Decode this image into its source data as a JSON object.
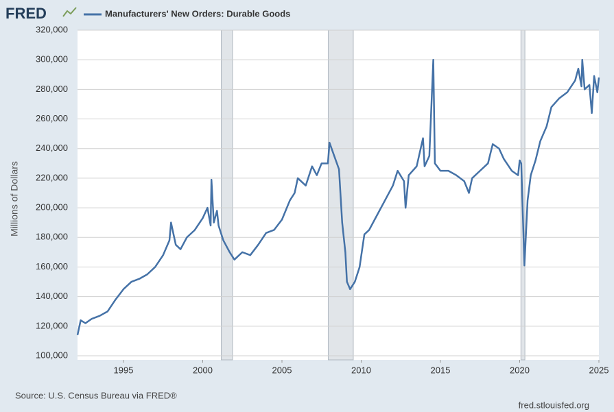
{
  "chart_data": {
    "type": "line",
    "logo": "FRED",
    "ylabel": "Millions of Dollars",
    "source": "Source: U.S. Census Bureau via FRED®",
    "url": "fred.stlouisfed.org",
    "xlim": [
      1992.1,
      2025
    ],
    "xticks": [
      1995,
      2000,
      2005,
      2010,
      2015,
      2020,
      2025
    ],
    "ylim": [
      100000,
      320000
    ],
    "yticks": [
      {
        "value": 100000,
        "label": "100,000"
      },
      {
        "value": 120000,
        "label": "120,000"
      },
      {
        "value": 140000,
        "label": "140,000"
      },
      {
        "value": 160000,
        "label": "160,000"
      },
      {
        "value": 180000,
        "label": "180,000"
      },
      {
        "value": 200000,
        "label": "200,000"
      },
      {
        "value": 220000,
        "label": "220,000"
      },
      {
        "value": 240000,
        "label": "240,000"
      },
      {
        "value": 260000,
        "label": "260,000"
      },
      {
        "value": 280000,
        "label": "280,000"
      },
      {
        "value": 300000,
        "label": "300,000"
      },
      {
        "value": 320000,
        "label": "320,000"
      }
    ],
    "grid": true,
    "recessions": [
      [
        2001.17,
        2001.88
      ],
      [
        2007.92,
        2009.5
      ],
      [
        2020.08,
        2020.33
      ]
    ],
    "recession_color": "#e1e5e9",
    "x": [
      1992.1,
      1992.3,
      1992.6,
      1993.0,
      1993.5,
      1994.0,
      1994.5,
      1995.0,
      1995.5,
      1996.0,
      1996.5,
      1997.0,
      1997.5,
      1997.9,
      1998.0,
      1998.3,
      1998.6,
      1999.0,
      1999.5,
      2000.0,
      2000.3,
      2000.5,
      2000.55,
      2000.7,
      2000.9,
      2001.0,
      2001.3,
      2001.7,
      2002.0,
      2002.5,
      2003.0,
      2003.5,
      2004.0,
      2004.5,
      2005.0,
      2005.5,
      2005.8,
      2006.0,
      2006.5,
      2006.9,
      2007.2,
      2007.5,
      2007.9,
      2008.0,
      2008.3,
      2008.6,
      2008.8,
      2009.0,
      2009.1,
      2009.3,
      2009.6,
      2009.9,
      2010.2,
      2010.5,
      2011.0,
      2011.5,
      2012.0,
      2012.3,
      2012.7,
      2012.8,
      2013.0,
      2013.5,
      2013.9,
      2014.0,
      2014.3,
      2014.55,
      2014.65,
      2015.0,
      2015.5,
      2016.0,
      2016.5,
      2016.8,
      2017.0,
      2017.5,
      2018.0,
      2018.3,
      2018.7,
      2019.0,
      2019.5,
      2019.9,
      2020.0,
      2020.1,
      2020.3,
      2020.5,
      2020.7,
      2021.0,
      2021.3,
      2021.7,
      2022.0,
      2022.5,
      2023.0,
      2023.5,
      2023.7,
      2023.9,
      2023.95,
      2024.1,
      2024.4,
      2024.55,
      2024.7,
      2024.9,
      2025.0
    ],
    "series": [
      {
        "name": "Manufacturers' New Orders: Durable Goods",
        "color": "#4572a7",
        "values": [
          114000,
          124000,
          122000,
          125000,
          127000,
          130000,
          138000,
          145000,
          150000,
          152000,
          155000,
          160000,
          168000,
          178000,
          190000,
          175000,
          172000,
          180000,
          185000,
          193000,
          200000,
          188000,
          219000,
          190000,
          198000,
          188000,
          178000,
          170000,
          165000,
          170000,
          168000,
          175000,
          183000,
          185000,
          192000,
          205000,
          210000,
          220000,
          215000,
          228000,
          222000,
          230000,
          230000,
          244000,
          235000,
          226000,
          190000,
          170000,
          150000,
          145000,
          150000,
          160000,
          182000,
          185000,
          195000,
          205000,
          215000,
          225000,
          218000,
          200000,
          222000,
          228000,
          247000,
          228000,
          235000,
          300000,
          230000,
          225000,
          225000,
          222000,
          218000,
          210000,
          220000,
          225000,
          230000,
          243000,
          240000,
          233000,
          225000,
          222000,
          232000,
          230000,
          161000,
          205000,
          222000,
          232000,
          245000,
          255000,
          268000,
          274000,
          278000,
          286000,
          294000,
          282000,
          300000,
          280000,
          283000,
          264000,
          289000,
          278000,
          288000
        ]
      }
    ]
  }
}
